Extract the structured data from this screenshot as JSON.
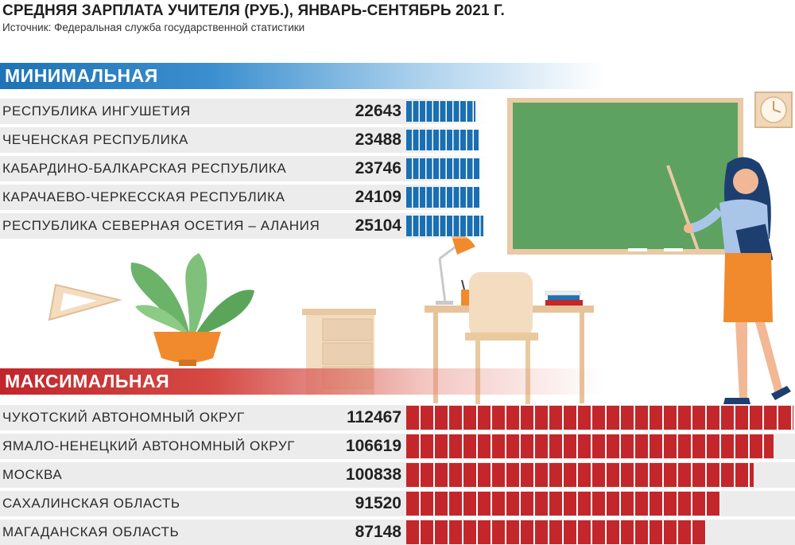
{
  "title": "СРЕДНЯЯ ЗАРПЛАТА УЧИТЕЛЯ (РУБ.), ЯНВАРЬ-СЕНТЯБРЬ 2021 Г.",
  "source": "Источник: Федеральная служба государственной статистики",
  "colors": {
    "min_bar": "#1a6fb2",
    "max_bar": "#c3272b",
    "row_bg": "#ececec"
  },
  "chart_data": [
    {
      "type": "bar",
      "title": "МИНИМАЛЬНАЯ",
      "orientation": "horizontal",
      "categories": [
        "РЕСПУБЛИКА ИНГУШЕТИЯ",
        "ЧЕЧЕНСКАЯ РЕСПУБЛИКА",
        "КАБАРДИНО-БАЛКАРСКАЯ РЕСПУБЛИКА",
        "КАРАЧАЕВО-ЧЕРКЕССКАЯ РЕСПУБЛИКА",
        "РЕСПУБЛИКА СЕВЕРНАЯ ОСЕТИЯ – АЛАНИЯ"
      ],
      "values": [
        22643,
        23488,
        23746,
        24109,
        25104
      ],
      "value_labels": [
        "22643",
        "23488",
        "23746",
        "24109",
        "25104"
      ]
    },
    {
      "type": "bar",
      "title": "МАКСИМАЛЬНАЯ",
      "orientation": "horizontal",
      "categories": [
        "ЧУКОТСКИЙ АВТОНОМНЫЙ ОКРУГ",
        "ЯМАЛО-НЕНЕЦКИЙ АВТОНОМНЫЙ ОКРУГ",
        "МОСКВА",
        "САХАЛИНСКАЯ ОБЛАСТЬ",
        "МАГАДАНСКАЯ ОБЛАСТЬ"
      ],
      "values": [
        112467,
        106619,
        100838,
        91520,
        87148
      ],
      "value_labels": [
        "112467",
        "106619",
        "100838",
        "91520",
        "87148"
      ]
    }
  ]
}
